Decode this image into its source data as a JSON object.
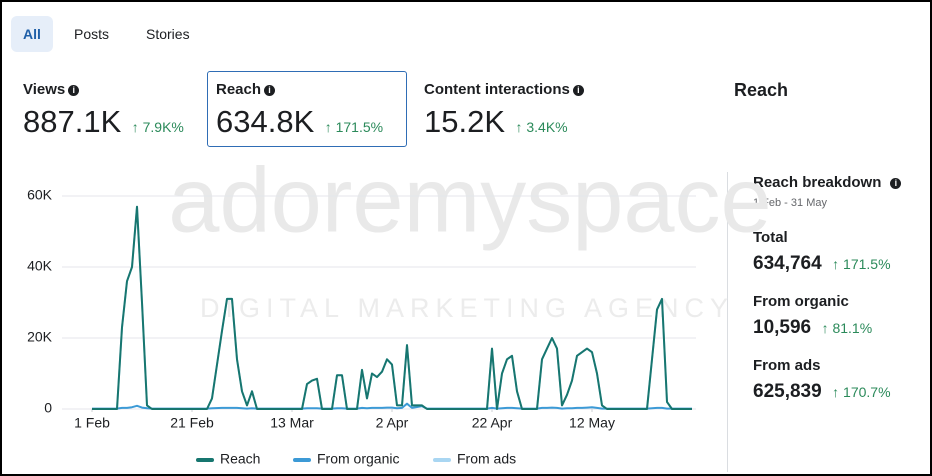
{
  "tabs": [
    "All",
    "Posts",
    "Stories"
  ],
  "metrics": [
    {
      "label": "Views",
      "value": "887.1K",
      "change": "7.9K%"
    },
    {
      "label": "Reach",
      "value": "634.8K",
      "change": "171.5%"
    },
    {
      "label": "Content interactions",
      "value": "15.2K",
      "change": "3.4K%"
    }
  ],
  "panel_title": "Reach",
  "watermark": {
    "brand": "adoremyspace",
    "tagline": "DIGITAL MARKETING AGENCY"
  },
  "breakdown": {
    "title": "Reach breakdown",
    "period": "1 Feb - 31 May",
    "items": [
      {
        "label": "Total",
        "value": "634,764",
        "change": "171.5%"
      },
      {
        "label": "From organic",
        "value": "10,596",
        "change": "81.1%"
      },
      {
        "label": "From ads",
        "value": "625,839",
        "change": "170.7%"
      }
    ]
  },
  "chart_data": {
    "type": "line",
    "x": [
      0,
      5,
      6,
      7,
      8,
      9,
      10,
      11,
      12,
      23,
      24,
      26,
      27,
      28,
      29,
      30,
      31,
      32,
      33,
      42,
      43,
      44,
      45,
      46,
      48,
      49,
      50,
      51,
      53,
      54,
      55,
      56,
      57,
      58,
      59,
      60,
      61,
      62,
      63,
      64,
      66,
      67,
      79,
      80,
      81,
      82,
      83,
      84,
      85,
      86,
      89,
      90,
      91,
      92,
      93,
      94,
      95,
      96,
      97,
      98,
      99,
      100,
      101,
      102,
      103,
      111,
      112,
      113,
      114,
      115,
      116,
      120
    ],
    "series": [
      {
        "name": "From ads",
        "color": "#a9d6f2",
        "values": [
          0,
          0,
          23000,
          36000,
          40000,
          57000,
          30000,
          1000,
          0,
          0,
          3000,
          22000,
          31000,
          31000,
          14000,
          5000,
          1000,
          5000,
          0,
          0,
          7000,
          8000,
          8500,
          0,
          0,
          9500,
          9500,
          0,
          0,
          11000,
          3000,
          10000,
          9000,
          10500,
          14000,
          12500,
          1000,
          1000,
          18000,
          1000,
          1000,
          0,
          0,
          17000,
          0,
          10000,
          14000,
          15000,
          5000,
          0,
          0,
          14000,
          17000,
          20000,
          17000,
          1000,
          4000,
          8000,
          15000,
          16000,
          17000,
          16000,
          10000,
          1000,
          0,
          0,
          14000,
          28000,
          31000,
          2000,
          0,
          0
        ]
      },
      {
        "name": "From organic",
        "color": "#3c9ad6",
        "values": [
          100,
          100,
          300,
          300,
          500,
          900,
          400,
          200,
          100,
          100,
          200,
          300,
          300,
          300,
          300,
          200,
          100,
          200,
          100,
          100,
          200,
          200,
          200,
          100,
          100,
          200,
          200,
          100,
          100,
          300,
          200,
          300,
          300,
          300,
          400,
          400,
          200,
          300,
          1500,
          300,
          800,
          100,
          100,
          300,
          100,
          200,
          300,
          300,
          200,
          100,
          100,
          300,
          300,
          400,
          300,
          100,
          200,
          200,
          300,
          300,
          400,
          500,
          300,
          100,
          100,
          100,
          200,
          300,
          300,
          100,
          100,
          100
        ]
      },
      {
        "name": "Reach",
        "color": "#17766f",
        "values": [
          0,
          0,
          23000,
          36000,
          40000,
          57000,
          30000,
          1000,
          0,
          0,
          3000,
          22000,
          31000,
          31000,
          14000,
          5000,
          1000,
          5000,
          0,
          0,
          7000,
          8000,
          8500,
          0,
          0,
          9500,
          9500,
          0,
          0,
          11000,
          3000,
          10000,
          9000,
          10500,
          14000,
          12500,
          1000,
          1000,
          18000,
          1000,
          1000,
          0,
          0,
          17000,
          0,
          10000,
          14000,
          15000,
          5000,
          0,
          0,
          14000,
          17000,
          20000,
          17000,
          1000,
          4000,
          8000,
          15000,
          16000,
          17000,
          16000,
          10000,
          1000,
          0,
          0,
          14000,
          28000,
          31000,
          2000,
          0,
          0
        ]
      }
    ],
    "legend_order": [
      "Reach",
      "From organic",
      "From ads"
    ],
    "xlim": [
      0,
      120
    ],
    "xticks": [
      {
        "value": 0,
        "label": "1 Feb"
      },
      {
        "value": 20,
        "label": "21 Feb"
      },
      {
        "value": 40,
        "label": "13 Mar"
      },
      {
        "value": 60,
        "label": "2 Apr"
      },
      {
        "value": 80,
        "label": "22 Apr"
      },
      {
        "value": 100,
        "label": "12 May"
      }
    ],
    "ylim": [
      0,
      60000
    ],
    "yticks": [
      0,
      {
        "value": 20000,
        "label": "20K"
      },
      {
        "value": 40000,
        "label": "40K"
      },
      {
        "value": 60000,
        "label": "60K"
      }
    ],
    "grid": true
  }
}
